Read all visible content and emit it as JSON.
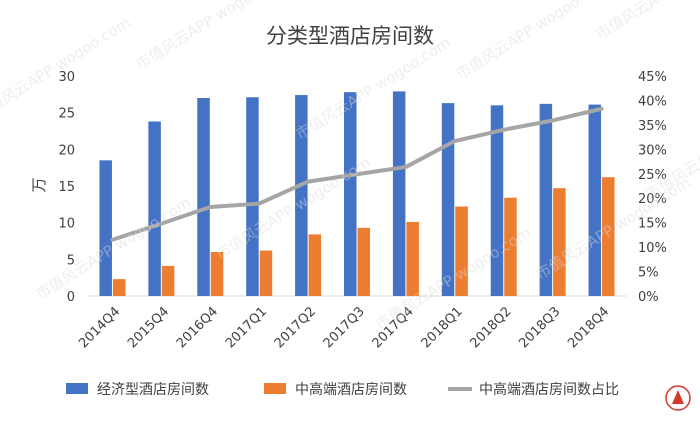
{
  "chart_data": {
    "type": "bar",
    "title": "分类型酒店房间数",
    "ylabel": "万",
    "y2label": "",
    "categories": [
      "2014Q4",
      "2015Q4",
      "2016Q4",
      "2017Q1",
      "2017Q2",
      "2017Q3",
      "2017Q4",
      "2018Q1",
      "2018Q2",
      "2018Q3",
      "2018Q4"
    ],
    "ylim": [
      0,
      30
    ],
    "yticks": [
      "0",
      "5",
      "10",
      "15",
      "20",
      "25",
      "30"
    ],
    "y2lim": [
      0,
      45
    ],
    "y2ticks": [
      "0%",
      "5%",
      "10%",
      "15%",
      "20%",
      "25%",
      "30%",
      "35%",
      "40%",
      "45%"
    ],
    "series": [
      {
        "name": "经济型酒店房间数",
        "type": "bar",
        "axis": "left",
        "color": "#4472C4",
        "values": [
          18.5,
          23.8,
          27.0,
          27.1,
          27.4,
          27.8,
          27.9,
          26.3,
          26.0,
          26.2,
          26.1
        ]
      },
      {
        "name": "中高端酒店房间数",
        "type": "bar",
        "axis": "left",
        "color": "#ED7D31",
        "values": [
          2.3,
          4.1,
          6.0,
          6.2,
          8.4,
          9.3,
          10.1,
          12.2,
          13.4,
          14.7,
          16.2
        ]
      },
      {
        "name": "中高端酒店房间数占比",
        "type": "line",
        "axis": "right",
        "color": "#A5A5A5",
        "values": [
          11.5,
          14.8,
          18.2,
          18.9,
          23.4,
          24.9,
          26.4,
          31.7,
          34.0,
          35.9,
          38.3
        ]
      }
    ],
    "grid": false,
    "legend": "bottom"
  },
  "watermark": "市值风云APP  wogoo.com"
}
